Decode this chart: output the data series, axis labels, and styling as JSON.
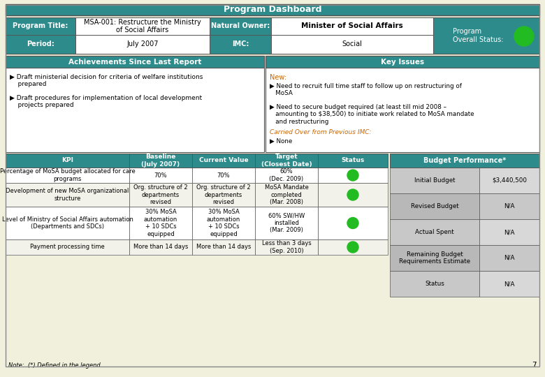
{
  "title": "Program Dashboard",
  "teal": "#2e8b8b",
  "white": "#ffffff",
  "light_bg": "#f0f0dc",
  "gray1": "#c8c8c8",
  "gray2": "#b0b0b0",
  "gray3": "#d8d8d8",
  "border": "#555555",
  "green_circle": "#22bb22",
  "green_edge": "#156615",
  "orange_text": "#cc6600",
  "program_title_label": "Program Title:",
  "program_title_value": "MSA-001: Restructure the Ministry\nof Social Affairs",
  "natural_owner_label": "Natural Owner:",
  "natural_owner_value": "Minister of Social Affairs",
  "status_label": "Program\nOverall Status:",
  "period_label": "Period:",
  "period_value": "July 2007",
  "imc_label": "IMC:",
  "imc_value": "Social",
  "achievements_title": "Achievements Since Last Report",
  "achievements_items": [
    "▶ Draft ministerial decision for criteria of welfare institutions\n    prepared",
    "▶ Draft procedures for implementation of local development\n    projects prepared"
  ],
  "key_issues_title": "Key Issues",
  "key_issues_new_label": "New:",
  "key_issues_new_items": [
    "▶ Need to recruit full time staff to follow up on restructuring of\n   MoSA",
    "▶ Need to secure budget required (at least till mid 2008 –\n   amounting to $38,500) to initiate work related to MoSA mandate\n   and restructuring"
  ],
  "key_issues_carried_label": "Carried Over from Previous IMC:",
  "key_issues_carried_items": [
    "▶ None"
  ],
  "kpi_headers": [
    "KPI",
    "Baseline\n(July 2007)",
    "Current Value",
    "Target\n(Closest Date)",
    "Status"
  ],
  "kpi_rows": [
    [
      "Percentage of MoSA budget allocated for care\nprograms",
      "70%",
      "70%",
      "60%\n(Dec. 2009)",
      "green"
    ],
    [
      "Development of new MoSA organizational\nstructure",
      "Org. structure of 2\ndepartments\nrevised",
      "Org. structure of 2\ndepartments\nrevised",
      "MoSA Mandate\ncompleted\n(Mar. 2008)",
      "green"
    ],
    [
      "Level of Ministry of Social Affairs automation\n(Departments and SDCs)",
      "30% MoSA\nautomation\n+ 10 SDCs\nequipped",
      "30% MoSA\nautomation\n+ 10 SDCs\nequipped",
      "60% SW/HW\ninstalled\n(Mar. 2009)",
      "green"
    ],
    [
      "Payment processing time",
      "More than 14 days",
      "More than 14 days",
      "Less than 3 days\n(Sep. 2010)",
      "green"
    ]
  ],
  "budget_title": "Budget Performance*",
  "budget_rows": [
    [
      "Initial Budget",
      "$3,440,500"
    ],
    [
      "Revised Budget",
      "N/A"
    ],
    [
      "Actual Spent",
      "N/A"
    ],
    [
      "Remaining Budget\nRequirements Estimate",
      "N/A"
    ],
    [
      "Status",
      "N/A"
    ]
  ],
  "note_text": "Note:  (*) Defined in the legend",
  "page_number": "7"
}
